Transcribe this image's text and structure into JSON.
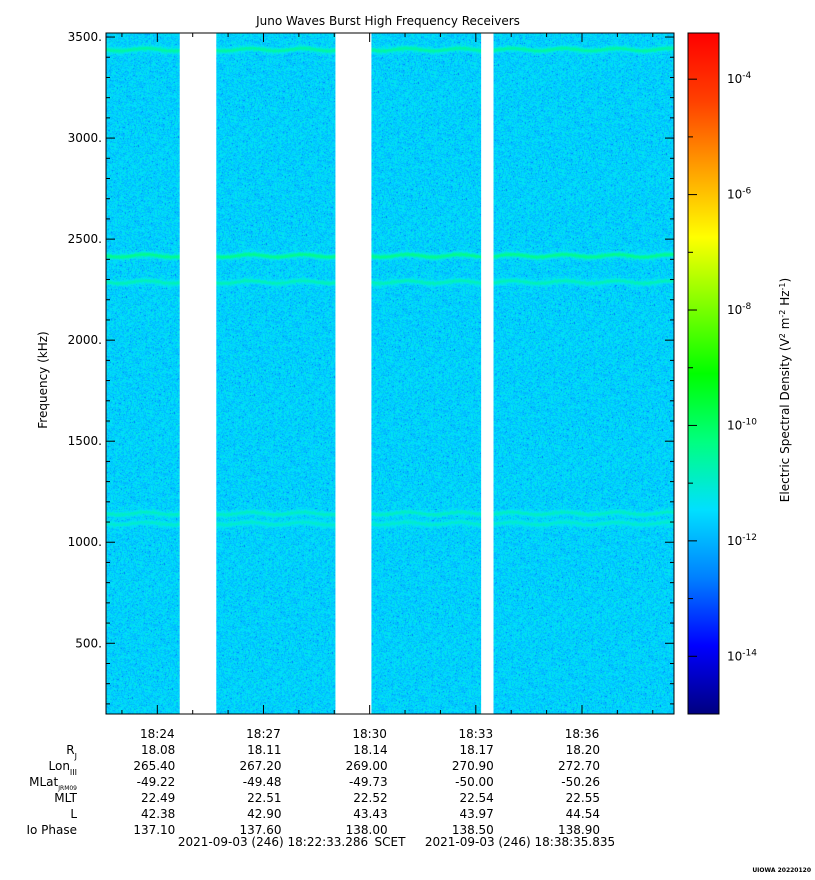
{
  "chart_data": {
    "type": "heatmap",
    "title": "Juno Waves Burst High Frequency Receivers",
    "ylabel": "Frequency (kHz)",
    "ylim": [
      150,
      3520
    ],
    "y_ticks": [
      500,
      1000,
      1500,
      2000,
      2500,
      3000,
      3500
    ],
    "y_tick_labels": [
      "500.",
      "1000.",
      "1500.",
      "2000.",
      "2500.",
      "3000.",
      "3500."
    ],
    "x_tick_labels": [
      "18:24",
      "18:27",
      "18:30",
      "18:33",
      "18:36"
    ],
    "time_range": [
      "18:22:33",
      "18:38:36"
    ],
    "colorbar": {
      "label": "Electric Spectral Density (V2 m-2 Hz-1)",
      "scale": "log",
      "range_exponent": [
        -15,
        -3.2
      ],
      "tick_exponents": [
        -4,
        -6,
        -8,
        -10,
        -12,
        -14
      ],
      "colormap": [
        "#000080",
        "#0000ff",
        "#0080ff",
        "#00e0ff",
        "#00ff80",
        "#00ff00",
        "#80ff00",
        "#ffff00",
        "#ffa000",
        "#ff4000",
        "#ff0000"
      ]
    },
    "data_gaps": [
      [
        "18:24:38",
        "18:25:40"
      ],
      [
        "18:29:02",
        "18:30:03"
      ],
      [
        "18:33:09",
        "18:33:30"
      ]
    ],
    "background_level_exponent": -11.6,
    "emission_bands_kHz": [
      {
        "center": 3440,
        "level_exponent": -10.6
      },
      {
        "center": 2420,
        "level_exponent": -10.4
      },
      {
        "center": 2290,
        "level_exponent": -10.8
      },
      {
        "center": 1145,
        "level_exponent": -10.9
      },
      {
        "center": 1095,
        "level_exponent": -11.0
      }
    ]
  },
  "ephemeris": {
    "rows": [
      {
        "label": "R",
        "sub": "J",
        "values": [
          "18.08",
          "18.11",
          "18.14",
          "18.17",
          "18.20"
        ]
      },
      {
        "label": "Lon",
        "sub": "III",
        "values": [
          "265.40",
          "267.20",
          "269.00",
          "270.90",
          "272.70"
        ]
      },
      {
        "label": "MLat",
        "sub": "JRM09",
        "values": [
          "-49.22",
          "-49.48",
          "-49.73",
          "-50.00",
          "-50.26"
        ]
      },
      {
        "label": "MLT",
        "sub": "",
        "values": [
          "22.49",
          "22.51",
          "22.52",
          "22.54",
          "22.55"
        ]
      },
      {
        "label": "L",
        "sub": "",
        "values": [
          "42.38",
          "42.90",
          "43.43",
          "43.97",
          "44.54"
        ]
      },
      {
        "label": "Io Phase",
        "sub": "",
        "values": [
          "137.10",
          "137.60",
          "138.00",
          "138.50",
          "138.90"
        ]
      }
    ]
  },
  "time_span": {
    "start": "2021-09-03 (246) 18:22:33.286",
    "frame": "SCET",
    "end": "2021-09-03 (246) 18:38:35.835"
  },
  "footer": "UIOWA 20220120"
}
